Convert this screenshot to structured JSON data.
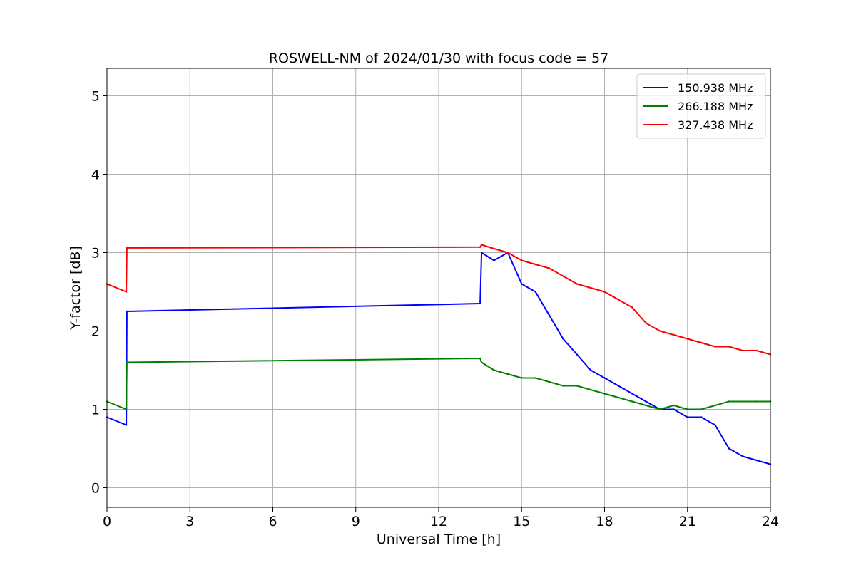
{
  "chart_data": {
    "type": "line",
    "title": "ROSWELL-NM of 2024/01/30 with focus code = 57",
    "xlabel": "Universal Time [h]",
    "ylabel": "Y-factor [dB]",
    "xlim": [
      0,
      24
    ],
    "ylim": [
      -0.25,
      5.35
    ],
    "xticks": [
      0,
      3,
      6,
      9,
      12,
      15,
      18,
      21,
      24
    ],
    "yticks": [
      0,
      1,
      2,
      3,
      4,
      5
    ],
    "grid": true,
    "legend_position": "top-right",
    "series": [
      {
        "name": "150.938 MHz",
        "color": "#0000ff",
        "x": [
          0.0,
          0.7,
          0.72,
          13.5,
          13.55,
          14.0,
          14.5,
          15.0,
          15.5,
          16.0,
          16.5,
          17.0,
          17.5,
          18.0,
          18.5,
          19.0,
          19.5,
          20.0,
          20.5,
          21.0,
          21.5,
          22.0,
          22.5,
          23.0,
          23.5,
          24.0
        ],
        "y": [
          0.9,
          0.8,
          2.25,
          2.35,
          3.0,
          2.9,
          3.0,
          2.6,
          2.5,
          2.2,
          1.9,
          1.7,
          1.5,
          1.4,
          1.3,
          1.2,
          1.1,
          1.0,
          1.0,
          0.9,
          0.9,
          0.8,
          0.5,
          0.4,
          0.35,
          0.3
        ]
      },
      {
        "name": "266.188 MHz",
        "color": "#008000",
        "x": [
          0.0,
          0.7,
          0.72,
          13.5,
          13.55,
          14.0,
          14.5,
          15.0,
          15.5,
          16.0,
          16.5,
          17.0,
          17.5,
          18.0,
          18.5,
          19.0,
          19.5,
          20.0,
          20.5,
          21.0,
          21.5,
          22.0,
          22.5,
          23.0,
          23.5,
          24.0
        ],
        "y": [
          1.1,
          1.0,
          1.6,
          1.65,
          1.6,
          1.5,
          1.45,
          1.4,
          1.4,
          1.35,
          1.3,
          1.3,
          1.25,
          1.2,
          1.15,
          1.1,
          1.05,
          1.0,
          1.05,
          1.0,
          1.0,
          1.05,
          1.1,
          1.1,
          1.1,
          1.1
        ]
      },
      {
        "name": "327.438 MHz",
        "color": "#ff0000",
        "x": [
          0.0,
          0.7,
          0.72,
          13.5,
          13.55,
          14.0,
          14.5,
          15.0,
          15.5,
          16.0,
          16.5,
          17.0,
          17.5,
          18.0,
          18.5,
          19.0,
          19.5,
          20.0,
          20.5,
          21.0,
          21.5,
          22.0,
          22.5,
          23.0,
          23.5,
          24.0
        ],
        "y": [
          2.6,
          2.5,
          3.06,
          3.07,
          3.1,
          3.05,
          3.0,
          2.9,
          2.85,
          2.8,
          2.7,
          2.6,
          2.55,
          2.5,
          2.4,
          2.3,
          2.1,
          2.0,
          1.95,
          1.9,
          1.85,
          1.8,
          1.8,
          1.75,
          1.75,
          1.7
        ]
      }
    ]
  }
}
